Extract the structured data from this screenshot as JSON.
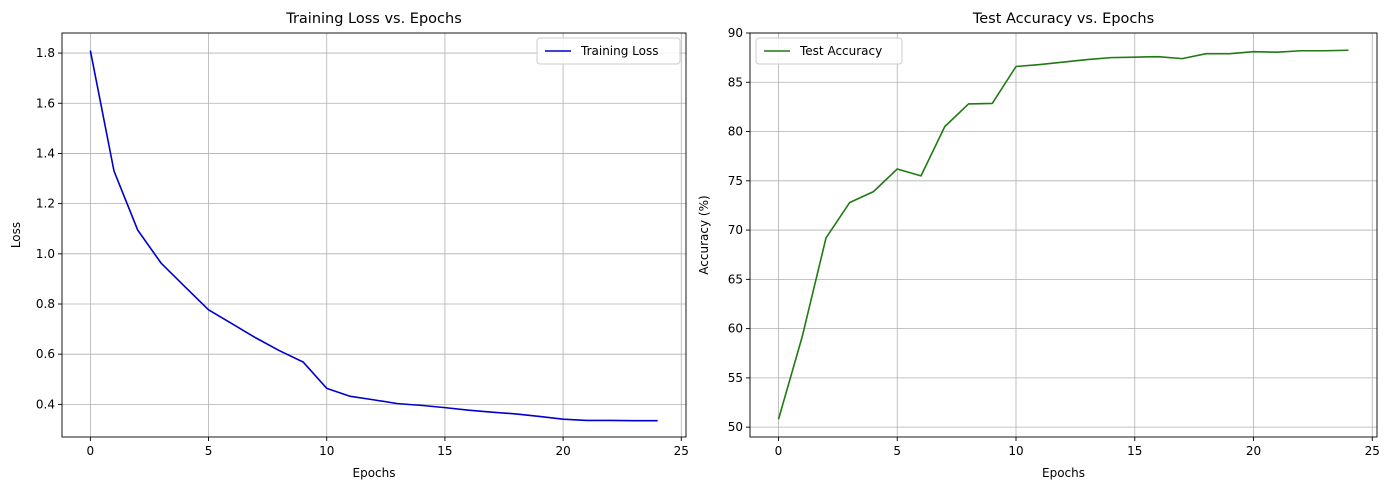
{
  "chart_data": [
    {
      "type": "line",
      "title": "Training Loss vs. Epochs",
      "xlabel": "Epochs",
      "ylabel": "Loss",
      "xlim": [
        -1.2,
        25.2
      ],
      "ylim": [
        0.27,
        1.88
      ],
      "xticks": [
        0,
        5,
        10,
        15,
        20,
        25
      ],
      "yticks": [
        0.4,
        0.6,
        0.8,
        1.0,
        1.2,
        1.4,
        1.6,
        1.8
      ],
      "ytick_format": 1,
      "grid": true,
      "legend_position": "top-right",
      "x": [
        0,
        1,
        2,
        3,
        4,
        5,
        6,
        7,
        8,
        9,
        10,
        11,
        12,
        13,
        14,
        15,
        16,
        17,
        18,
        19,
        20,
        21,
        22,
        23,
        24
      ],
      "series": [
        {
          "name": "Training Loss",
          "color": "#0000cc",
          "values": [
            1.81,
            1.33,
            1.095,
            0.962,
            0.869,
            0.777,
            0.721,
            0.665,
            0.614,
            0.569,
            0.464,
            0.432,
            0.418,
            0.403,
            0.396,
            0.387,
            0.377,
            0.369,
            0.362,
            0.352,
            0.341,
            0.336,
            0.336,
            0.335,
            0.335
          ]
        }
      ]
    },
    {
      "type": "line",
      "title": "Test Accuracy vs. Epochs",
      "xlabel": "Epochs",
      "ylabel": "Accuracy (%)",
      "xlimit_note": "",
      "xlim": [
        -1.2,
        25.2
      ],
      "ylim": [
        49.0,
        90.0
      ],
      "xticks": [
        0,
        5,
        10,
        15,
        20,
        25
      ],
      "yticks": [
        50,
        55,
        60,
        65,
        70,
        75,
        80,
        85,
        90
      ],
      "ytick_format": 0,
      "grid": true,
      "legend_position": "top-left",
      "x": [
        0,
        1,
        2,
        3,
        4,
        5,
        6,
        7,
        8,
        9,
        10,
        11,
        12,
        13,
        14,
        15,
        16,
        17,
        18,
        19,
        20,
        21,
        22,
        23,
        24
      ],
      "series": [
        {
          "name": "Test Accuracy",
          "color": "#1f7a12",
          "values": [
            50.8,
            59.2,
            69.2,
            72.8,
            73.9,
            76.2,
            75.5,
            80.5,
            82.8,
            82.85,
            86.6,
            86.8,
            87.05,
            87.3,
            87.5,
            87.55,
            87.6,
            87.4,
            87.9,
            87.9,
            88.1,
            88.05,
            88.2,
            88.2,
            88.25
          ]
        }
      ]
    }
  ]
}
